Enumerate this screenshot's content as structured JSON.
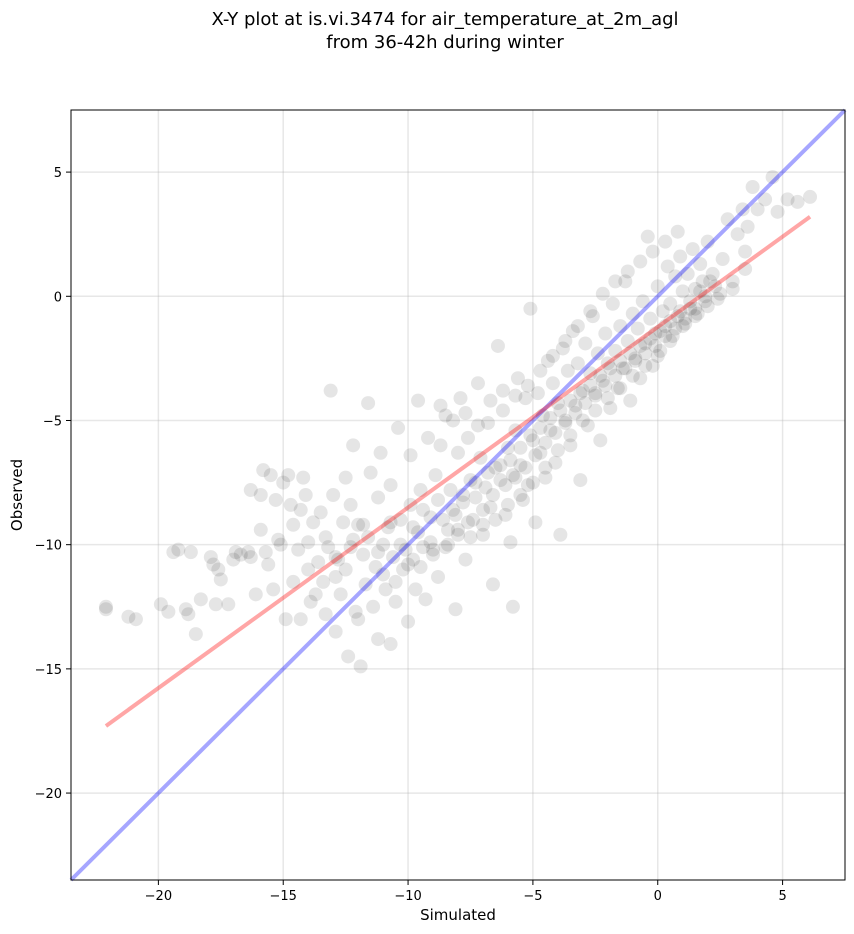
{
  "chart_data": {
    "type": "scatter",
    "title_lines": [
      "X-Y plot at is.vi.3474 for air_temperature_at_2m_agl",
      "from 36-42h during winter"
    ],
    "xlabel": "Simulated",
    "ylabel": "Observed",
    "xlim": [
      -23.5,
      7.5
    ],
    "ylim": [
      -23.5,
      7.5
    ],
    "xticks": [
      -20,
      -15,
      -10,
      -5,
      0,
      5
    ],
    "yticks": [
      -20,
      -15,
      -10,
      -5,
      0,
      5
    ],
    "xtick_labels": [
      "−20",
      "−15",
      "−10",
      "−5",
      "0",
      "5"
    ],
    "ytick_labels": [
      "−20",
      "−15",
      "−10",
      "−5",
      "0",
      "5"
    ],
    "grid": true,
    "point_color": "#000000",
    "point_alpha": 0.1,
    "lines": [
      {
        "kind": "identity",
        "color": "#0000ff",
        "alpha": 0.35,
        "x": [
          -23.5,
          7.5
        ],
        "y": [
          -23.5,
          7.5
        ]
      },
      {
        "kind": "regression",
        "color": "#ff0000",
        "alpha": 0.35,
        "x": [
          -22.1,
          6.1
        ],
        "y": [
          -17.3,
          3.2
        ]
      }
    ],
    "points": [
      [
        -22.1,
        -12.6
      ],
      [
        -22.1,
        -12.5
      ],
      [
        -21.2,
        -12.9
      ],
      [
        -20.9,
        -13.0
      ],
      [
        -19.9,
        -12.4
      ],
      [
        -19.6,
        -12.7
      ],
      [
        -19.4,
        -10.3
      ],
      [
        -19.2,
        -10.2
      ],
      [
        -18.9,
        -12.6
      ],
      [
        -18.8,
        -12.8
      ],
      [
        -18.7,
        -10.3
      ],
      [
        -18.5,
        -13.6
      ],
      [
        -18.3,
        -12.2
      ],
      [
        -17.9,
        -10.5
      ],
      [
        -17.8,
        -10.8
      ],
      [
        -17.7,
        -12.4
      ],
      [
        -17.6,
        -11.0
      ],
      [
        -17.5,
        -11.4
      ],
      [
        -17.2,
        -12.4
      ],
      [
        -17.0,
        -10.6
      ],
      [
        -16.9,
        -10.3
      ],
      [
        -16.7,
        -10.4
      ],
      [
        -16.4,
        -10.3
      ],
      [
        -16.3,
        -10.5
      ],
      [
        -16.3,
        -7.8
      ],
      [
        -16.1,
        -12.0
      ],
      [
        -15.9,
        -9.4
      ],
      [
        -15.9,
        -8.0
      ],
      [
        -15.8,
        -7.0
      ],
      [
        -15.7,
        -10.3
      ],
      [
        -15.6,
        -10.8
      ],
      [
        -15.5,
        -7.2
      ],
      [
        -15.4,
        -11.8
      ],
      [
        -15.3,
        -8.2
      ],
      [
        -15.2,
        -9.8
      ],
      [
        -15.1,
        -10.0
      ],
      [
        -15.0,
        -7.5
      ],
      [
        -14.9,
        -13.0
      ],
      [
        -14.8,
        -7.2
      ],
      [
        -14.7,
        -8.4
      ],
      [
        -14.6,
        -11.5
      ],
      [
        -14.6,
        -9.2
      ],
      [
        -14.4,
        -10.2
      ],
      [
        -14.3,
        -8.6
      ],
      [
        -14.3,
        -13.0
      ],
      [
        -14.2,
        -7.3
      ],
      [
        -14.1,
        -8.0
      ],
      [
        -14.0,
        -11.0
      ],
      [
        -14.0,
        -9.9
      ],
      [
        -13.9,
        -12.3
      ],
      [
        -13.8,
        -9.1
      ],
      [
        -13.7,
        -12.0
      ],
      [
        -13.6,
        -10.7
      ],
      [
        -13.5,
        -8.7
      ],
      [
        -13.4,
        -11.5
      ],
      [
        -13.3,
        -12.8
      ],
      [
        -13.3,
        -9.7
      ],
      [
        -13.2,
        -10.1
      ],
      [
        -13.1,
        -3.8
      ],
      [
        -13.0,
        -8.0
      ],
      [
        -12.9,
        -11.3
      ],
      [
        -12.9,
        -13.5
      ],
      [
        -12.8,
        -10.6
      ],
      [
        -12.7,
        -12.0
      ],
      [
        -12.6,
        -9.1
      ],
      [
        -12.5,
        -7.3
      ],
      [
        -12.5,
        -11.0
      ],
      [
        -12.4,
        -14.5
      ],
      [
        -12.3,
        -8.4
      ],
      [
        -12.3,
        -10.1
      ],
      [
        -12.2,
        -6.0
      ],
      [
        -12.1,
        -12.7
      ],
      [
        -12.0,
        -9.2
      ],
      [
        -12.0,
        -13.0
      ],
      [
        -11.9,
        -14.9
      ],
      [
        -11.8,
        -10.4
      ],
      [
        -11.7,
        -11.6
      ],
      [
        -11.6,
        -9.7
      ],
      [
        -11.6,
        -4.3
      ],
      [
        -11.5,
        -7.1
      ],
      [
        -11.4,
        -12.5
      ],
      [
        -11.3,
        -10.9
      ],
      [
        -11.2,
        -8.1
      ],
      [
        -11.2,
        -13.8
      ],
      [
        -11.1,
        -6.3
      ],
      [
        -11.0,
        -10.0
      ],
      [
        -10.9,
        -11.8
      ],
      [
        -10.8,
        -9.3
      ],
      [
        -10.7,
        -14.0
      ],
      [
        -10.7,
        -7.6
      ],
      [
        -10.6,
        -10.5
      ],
      [
        -10.5,
        -12.3
      ],
      [
        -10.4,
        -5.3
      ],
      [
        -10.3,
        -9.0
      ],
      [
        -10.2,
        -11.0
      ],
      [
        -10.1,
        -10.2
      ],
      [
        -10.0,
        -13.1
      ],
      [
        -9.9,
        -6.4
      ],
      [
        -9.9,
        -8.4
      ],
      [
        -9.8,
        -10.6
      ],
      [
        -9.7,
        -11.8
      ],
      [
        -9.6,
        -9.5
      ],
      [
        -9.6,
        -4.2
      ],
      [
        -9.5,
        -7.8
      ],
      [
        -9.4,
        -10.1
      ],
      [
        -9.3,
        -12.2
      ],
      [
        -9.2,
        -5.7
      ],
      [
        -9.1,
        -8.9
      ],
      [
        -9.0,
        -10.4
      ],
      [
        -8.9,
        -7.2
      ],
      [
        -8.8,
        -11.3
      ],
      [
        -8.7,
        -6.0
      ],
      [
        -8.6,
        -9.0
      ],
      [
        -8.5,
        -4.8
      ],
      [
        -8.4,
        -10.0
      ],
      [
        -8.3,
        -7.8
      ],
      [
        -8.2,
        -8.6
      ],
      [
        -8.1,
        -12.6
      ],
      [
        -8.0,
        -6.3
      ],
      [
        -8.0,
        -9.4
      ],
      [
        -7.9,
        -4.1
      ],
      [
        -7.8,
        -8.3
      ],
      [
        -7.7,
        -10.6
      ],
      [
        -7.6,
        -5.7
      ],
      [
        -7.5,
        -7.4
      ],
      [
        -7.4,
        -9.0
      ],
      [
        -7.3,
        -8.1
      ],
      [
        -7.2,
        -3.5
      ],
      [
        -7.1,
        -6.5
      ],
      [
        -7.0,
        -9.6
      ],
      [
        -6.9,
        -7.7
      ],
      [
        -6.8,
        -5.1
      ],
      [
        -6.7,
        -8.5
      ],
      [
        -6.6,
        -11.6
      ],
      [
        -6.5,
        -6.9
      ],
      [
        -6.4,
        -2.0
      ],
      [
        -6.3,
        -7.4
      ],
      [
        -6.2,
        -4.6
      ],
      [
        -6.1,
        -8.8
      ],
      [
        -6.0,
        -6.1
      ],
      [
        -5.9,
        -9.9
      ],
      [
        -5.8,
        -7.2
      ],
      [
        -5.8,
        -12.5
      ],
      [
        -5.7,
        -5.4
      ],
      [
        -5.6,
        -3.3
      ],
      [
        -5.5,
        -6.8
      ],
      [
        -5.4,
        -8.2
      ],
      [
        -5.3,
        -4.1
      ],
      [
        -5.2,
        -7.6
      ],
      [
        -5.1,
        -0.5
      ],
      [
        -5.0,
        -5.8
      ],
      [
        -4.9,
        -9.1
      ],
      [
        -4.8,
        -3.9
      ],
      [
        -4.7,
        -6.3
      ],
      [
        -4.6,
        -4.8
      ],
      [
        -4.5,
        -7.3
      ],
      [
        -4.4,
        -2.6
      ],
      [
        -4.3,
        -5.4
      ],
      [
        -4.2,
        -3.5
      ],
      [
        -4.1,
        -6.7
      ],
      [
        -4.0,
        -4.3
      ],
      [
        -3.9,
        -9.6
      ],
      [
        -3.8,
        -2.1
      ],
      [
        -3.7,
        -5.0
      ],
      [
        -3.6,
        -3.0
      ],
      [
        -3.5,
        -6.0
      ],
      [
        -3.4,
        -1.4
      ],
      [
        -3.3,
        -4.4
      ],
      [
        -3.2,
        -2.7
      ],
      [
        -3.1,
        -7.4
      ],
      [
        -3.0,
        -3.8
      ],
      [
        -2.9,
        -1.9
      ],
      [
        -2.8,
        -5.2
      ],
      [
        -2.7,
        -3.1
      ],
      [
        -2.6,
        -0.8
      ],
      [
        -2.5,
        -4.0
      ],
      [
        -2.4,
        -2.3
      ],
      [
        -2.3,
        -5.8
      ],
      [
        -2.2,
        -3.4
      ],
      [
        -2.1,
        -1.5
      ],
      [
        -2.0,
        -2.7
      ],
      [
        -1.9,
        -4.5
      ],
      [
        -1.8,
        -0.3
      ],
      [
        -1.7,
        -2.2
      ],
      [
        -1.6,
        -3.7
      ],
      [
        -1.5,
        -1.2
      ],
      [
        -1.4,
        -2.9
      ],
      [
        -1.3,
        0.6
      ],
      [
        -1.2,
        -1.8
      ],
      [
        -1.1,
        -4.2
      ],
      [
        -1.0,
        -0.7
      ],
      [
        -0.9,
        -2.5
      ],
      [
        -0.8,
        -1.3
      ],
      [
        -0.7,
        -3.3
      ],
      [
        -0.6,
        -0.2
      ],
      [
        -0.5,
        -1.9
      ],
      [
        -0.4,
        2.4
      ],
      [
        -0.3,
        -0.9
      ],
      [
        -0.2,
        -2.8
      ],
      [
        -0.1,
        -1.5
      ],
      [
        0.0,
        0.4
      ],
      [
        0.1,
        -2.2
      ],
      [
        0.2,
        -0.6
      ],
      [
        0.3,
        -1.2
      ],
      [
        0.4,
        1.2
      ],
      [
        0.5,
        -0.3
      ],
      [
        0.6,
        -1.6
      ],
      [
        0.7,
        0.8
      ],
      [
        0.8,
        -0.8
      ],
      [
        0.9,
        1.6
      ],
      [
        1.0,
        0.2
      ],
      [
        1.1,
        -1.1
      ],
      [
        1.2,
        0.9
      ],
      [
        1.3,
        -0.5
      ],
      [
        1.4,
        1.9
      ],
      [
        1.5,
        0.3
      ],
      [
        1.6,
        -0.7
      ],
      [
        1.7,
        1.3
      ],
      [
        1.8,
        0.6
      ],
      [
        1.9,
        -0.2
      ],
      [
        2.0,
        2.2
      ],
      [
        2.2,
        0.9
      ],
      [
        2.4,
        -0.1
      ],
      [
        2.6,
        1.5
      ],
      [
        2.8,
        3.1
      ],
      [
        3.0,
        0.3
      ],
      [
        3.2,
        2.5
      ],
      [
        3.4,
        3.5
      ],
      [
        3.5,
        1.1
      ],
      [
        3.6,
        2.8
      ],
      [
        3.8,
        4.4
      ],
      [
        4.0,
        3.5
      ],
      [
        4.3,
        3.9
      ],
      [
        4.6,
        4.8
      ],
      [
        4.8,
        3.4
      ],
      [
        5.2,
        3.9
      ],
      [
        5.6,
        3.8
      ],
      [
        6.1,
        4.0
      ],
      [
        -12.9,
        -10.5
      ],
      [
        -12.2,
        -9.8
      ],
      [
        -11.8,
        -9.2
      ],
      [
        -11.2,
        -10.3
      ],
      [
        -10.7,
        -9.1
      ],
      [
        -10.3,
        -10.0
      ],
      [
        -9.8,
        -9.3
      ],
      [
        -9.4,
        -8.6
      ],
      [
        -9.1,
        -9.9
      ],
      [
        -8.8,
        -8.2
      ],
      [
        -8.4,
        -9.4
      ],
      [
        -8.1,
        -8.8
      ],
      [
        -7.8,
        -8.0
      ],
      [
        -7.6,
        -9.1
      ],
      [
        -7.3,
        -7.5
      ],
      [
        -7.0,
        -8.6
      ],
      [
        -6.8,
        -7.1
      ],
      [
        -6.6,
        -8.0
      ],
      [
        -6.3,
        -6.8
      ],
      [
        -6.1,
        -7.6
      ],
      [
        -5.9,
        -6.6
      ],
      [
        -5.7,
        -7.3
      ],
      [
        -5.5,
        -6.1
      ],
      [
        -5.3,
        -6.9
      ],
      [
        -5.1,
        -5.6
      ],
      [
        -4.9,
        -6.4
      ],
      [
        -4.7,
        -5.3
      ],
      [
        -4.5,
        -5.9
      ],
      [
        -4.3,
        -4.9
      ],
      [
        -4.1,
        -5.5
      ],
      [
        -3.9,
        -4.6
      ],
      [
        -3.7,
        -5.1
      ],
      [
        -3.5,
        -4.2
      ],
      [
        -3.3,
        -4.7
      ],
      [
        -3.1,
        -3.9
      ],
      [
        -2.9,
        -4.3
      ],
      [
        -2.7,
        -3.6
      ],
      [
        -2.5,
        -3.9
      ],
      [
        -2.3,
        -3.2
      ],
      [
        -2.1,
        -3.6
      ],
      [
        -1.9,
        -2.9
      ],
      [
        -1.7,
        -3.2
      ],
      [
        -1.5,
        -2.6
      ],
      [
        -1.3,
        -2.9
      ],
      [
        -1.1,
        -2.3
      ],
      [
        -0.9,
        -2.6
      ],
      [
        -0.7,
        -2.0
      ],
      [
        -0.5,
        -2.3
      ],
      [
        -0.3,
        -1.7
      ],
      [
        -0.1,
        -2.0
      ],
      [
        0.1,
        -1.4
      ],
      [
        0.3,
        -1.6
      ],
      [
        0.5,
        -1.0
      ],
      [
        0.7,
        -1.3
      ],
      [
        0.9,
        -0.6
      ],
      [
        1.1,
        -0.9
      ],
      [
        1.3,
        -0.2
      ],
      [
        1.5,
        -0.5
      ],
      [
        1.7,
        0.2
      ],
      [
        1.9,
        0.0
      ],
      [
        2.1,
        0.6
      ],
      [
        2.3,
        0.4
      ],
      [
        -11.0,
        -11.2
      ],
      [
        -10.5,
        -11.5
      ],
      [
        -10.0,
        -10.8
      ],
      [
        -9.5,
        -10.9
      ],
      [
        -9.0,
        -10.2
      ],
      [
        -8.5,
        -10.1
      ],
      [
        -8.0,
        -9.6
      ],
      [
        -7.5,
        -9.7
      ],
      [
        -7.0,
        -9.2
      ],
      [
        -6.5,
        -9.0
      ],
      [
        -6.0,
        -8.4
      ],
      [
        -5.5,
        -8.0
      ],
      [
        -5.0,
        -7.5
      ],
      [
        -4.5,
        -6.9
      ],
      [
        -4.0,
        -6.2
      ],
      [
        -3.5,
        -5.6
      ],
      [
        -3.0,
        -5.0
      ],
      [
        -2.5,
        -4.6
      ],
      [
        -2.0,
        -4.1
      ],
      [
        -1.5,
        -3.7
      ],
      [
        -1.0,
        -3.2
      ],
      [
        -0.5,
        -2.8
      ],
      [
        0.0,
        -2.4
      ],
      [
        0.5,
        -1.8
      ],
      [
        1.0,
        -1.2
      ],
      [
        1.5,
        -0.8
      ],
      [
        2.0,
        -0.4
      ],
      [
        2.5,
        0.1
      ],
      [
        3.0,
        0.6
      ],
      [
        3.5,
        1.8
      ],
      [
        -8.7,
        -4.4
      ],
      [
        -8.2,
        -5.0
      ],
      [
        -7.7,
        -4.7
      ],
      [
        -7.2,
        -5.2
      ],
      [
        -6.7,
        -4.2
      ],
      [
        -6.2,
        -3.8
      ],
      [
        -5.7,
        -4.0
      ],
      [
        -5.2,
        -3.6
      ],
      [
        -4.7,
        -3.0
      ],
      [
        -4.2,
        -2.4
      ],
      [
        -3.7,
        -1.8
      ],
      [
        -3.2,
        -1.2
      ],
      [
        -2.7,
        -0.6
      ],
      [
        -2.2,
        0.1
      ],
      [
        -1.7,
        0.6
      ],
      [
        -1.2,
        1.0
      ],
      [
        -0.7,
        1.4
      ],
      [
        -0.2,
        1.8
      ],
      [
        0.3,
        2.2
      ],
      [
        0.8,
        2.6
      ]
    ]
  }
}
